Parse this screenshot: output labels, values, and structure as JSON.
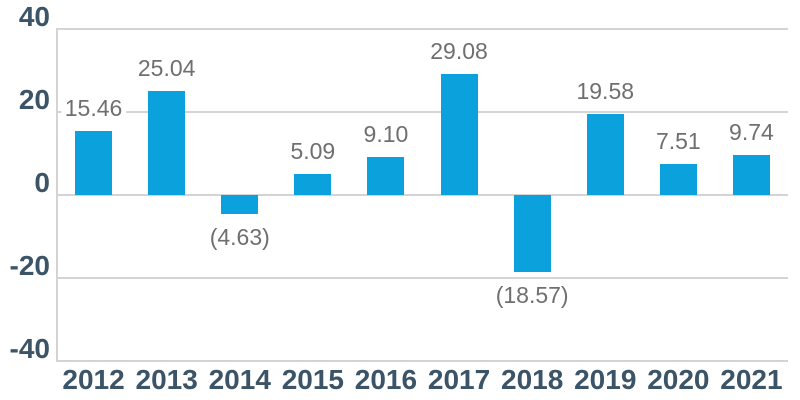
{
  "chart_data": {
    "type": "bar",
    "categories": [
      "2012",
      "2013",
      "2014",
      "2015",
      "2016",
      "2017",
      "2018",
      "2019",
      "2020",
      "2021"
    ],
    "values": [
      15.46,
      25.04,
      -4.63,
      5.09,
      9.1,
      29.08,
      -18.57,
      19.58,
      7.51,
      9.74
    ],
    "data_labels": [
      "15.46",
      "25.04",
      "(4.63)",
      "5.09",
      "9.10",
      "29.08",
      "(18.57)",
      "19.58",
      "7.51",
      "9.74"
    ],
    "ylim": [
      -40,
      40
    ],
    "yticks": [
      40,
      20,
      0,
      -20,
      -40
    ],
    "ytick_labels": [
      "40",
      "20",
      "0",
      "-20",
      "-40"
    ],
    "grid": true,
    "legend": "none",
    "colors": {
      "bar": "#0aa1dc",
      "axis_label": "#3b5467",
      "data_label": "#6f6f6f",
      "gridline": "#d4d4d4",
      "background": "#ffffff"
    }
  }
}
